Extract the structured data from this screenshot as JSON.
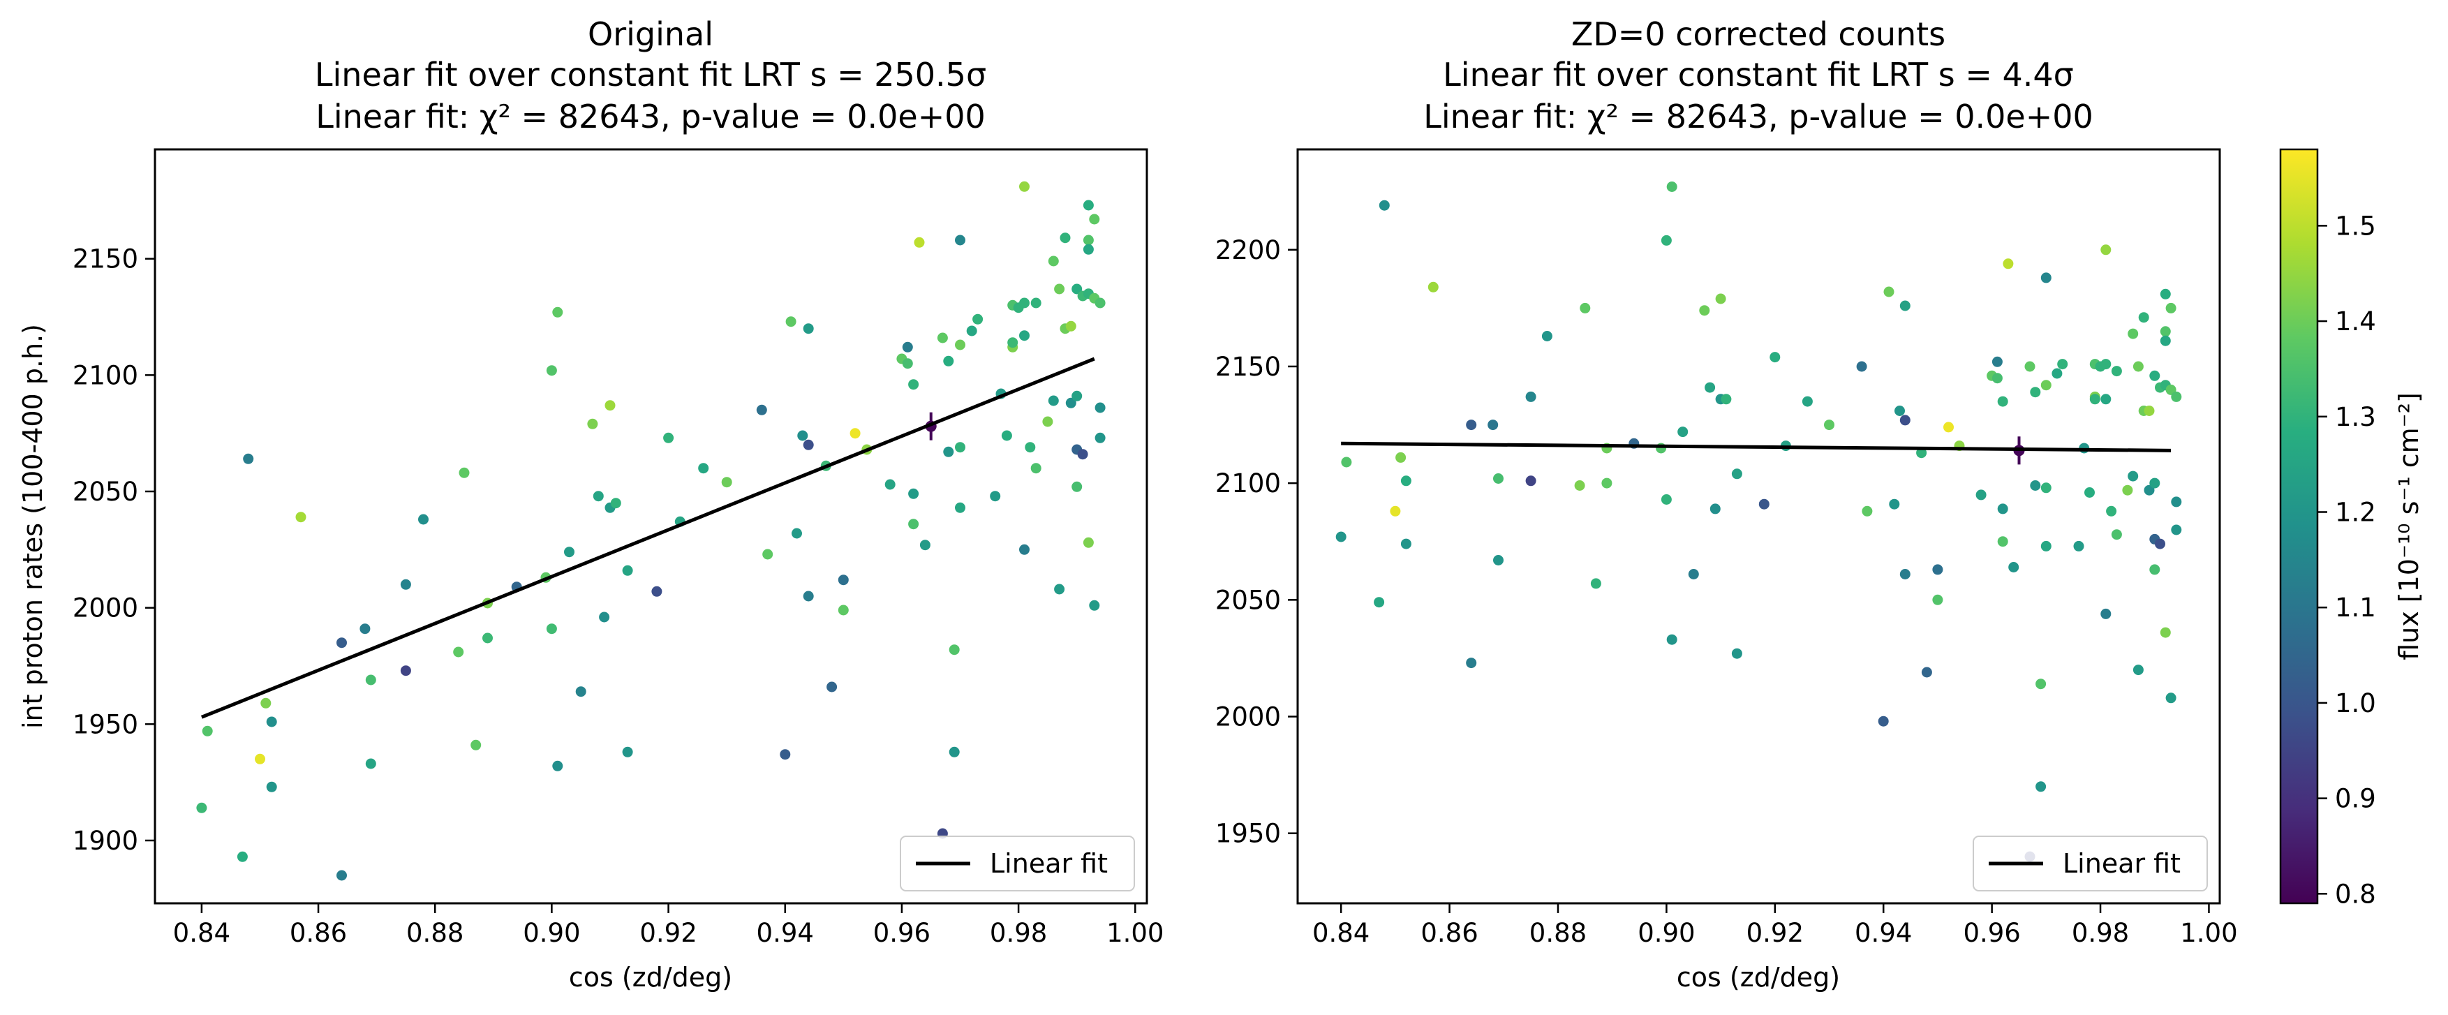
{
  "colormap": {
    "stops": [
      "#440154",
      "#472d7b",
      "#3b528b",
      "#2c728e",
      "#21918c",
      "#28ae80",
      "#5ec962",
      "#addc30",
      "#fde725"
    ],
    "range": [
      0.79,
      1.58
    ]
  },
  "colorbar": {
    "label": "flux [10⁻¹⁰ s⁻¹ cm⁻²]",
    "ticks": [
      0.8,
      0.9,
      1.0,
      1.1,
      1.2,
      1.3,
      1.4,
      1.5
    ],
    "tick_labels": [
      "0.8",
      "0.9",
      "1.0",
      "1.1",
      "1.2",
      "1.3",
      "1.4",
      "1.5"
    ]
  },
  "chart_data": [
    {
      "type": "scatter",
      "title_lines": [
        "Original",
        "Linear fit over constant fit LRT s = 250.5σ",
        "Linear fit: χ² = 82643, p-value = 0.0e+00"
      ],
      "xlabel": "cos (zd/deg)",
      "ylabel": "int proton rates (100-400 p.h.)",
      "xlim": [
        0.832,
        1.002
      ],
      "ylim": [
        1873,
        2197
      ],
      "xticks": [
        0.84,
        0.86,
        0.88,
        0.9,
        0.92,
        0.94,
        0.96,
        0.98,
        1.0
      ],
      "xtick_labels": [
        "0.84",
        "0.86",
        "0.88",
        "0.90",
        "0.92",
        "0.94",
        "0.96",
        "0.98",
        "1.00"
      ],
      "yticks": [
        1900,
        1950,
        2000,
        2050,
        2100,
        2150
      ],
      "ytick_labels": [
        "1900",
        "1950",
        "2000",
        "2050",
        "2100",
        "2150"
      ],
      "fit_line": {
        "x": [
          0.84,
          0.993
        ],
        "y": [
          1953,
          2107
        ]
      },
      "legend": {
        "label": "Linear fit",
        "position": "lower right"
      },
      "errorbar_point": {
        "x": 0.965,
        "y": 2078,
        "yerr": 6,
        "c": 0.8
      },
      "points": [
        [
          0.84,
          1914,
          1.32
        ],
        [
          0.841,
          1947,
          1.36
        ],
        [
          0.847,
          1893,
          1.28
        ],
        [
          0.848,
          2064,
          1.12
        ],
        [
          0.85,
          1935,
          1.55
        ],
        [
          0.851,
          1959,
          1.42
        ],
        [
          0.852,
          1951,
          1.18
        ],
        [
          0.852,
          1923,
          1.2
        ],
        [
          0.857,
          2039,
          1.47
        ],
        [
          0.864,
          1885,
          1.12
        ],
        [
          0.864,
          1985,
          1.02
        ],
        [
          0.868,
          1991,
          1.12
        ],
        [
          0.869,
          1933,
          1.25
        ],
        [
          0.869,
          1969,
          1.34
        ],
        [
          0.875,
          1973,
          0.95
        ],
        [
          0.875,
          2010,
          1.14
        ],
        [
          0.878,
          2038,
          1.18
        ],
        [
          0.884,
          1981,
          1.38
        ],
        [
          0.885,
          2058,
          1.38
        ],
        [
          0.887,
          1941,
          1.38
        ],
        [
          0.889,
          1987,
          1.32
        ],
        [
          0.889,
          2002,
          1.42
        ],
        [
          0.894,
          2009,
          1.05
        ],
        [
          0.899,
          2013,
          1.38
        ],
        [
          0.9,
          1991,
          1.33
        ],
        [
          0.9,
          2102,
          1.36
        ],
        [
          0.901,
          2127,
          1.38
        ],
        [
          0.901,
          1932,
          1.18
        ],
        [
          0.903,
          2024,
          1.22
        ],
        [
          0.905,
          1964,
          1.14
        ],
        [
          0.907,
          2079,
          1.42
        ],
        [
          0.908,
          2048,
          1.25
        ],
        [
          0.909,
          1996,
          1.18
        ],
        [
          0.91,
          2087,
          1.46
        ],
        [
          0.91,
          2043,
          1.22
        ],
        [
          0.911,
          2045,
          1.3
        ],
        [
          0.913,
          1938,
          1.2
        ],
        [
          0.913,
          2016,
          1.25
        ],
        [
          0.918,
          2007,
          0.98
        ],
        [
          0.92,
          2073,
          1.3
        ],
        [
          0.922,
          2037,
          1.25
        ],
        [
          0.926,
          2060,
          1.26
        ],
        [
          0.93,
          2054,
          1.4
        ],
        [
          0.936,
          2085,
          1.08
        ],
        [
          0.937,
          2023,
          1.38
        ],
        [
          0.94,
          1937,
          1.02
        ],
        [
          0.941,
          2123,
          1.38
        ],
        [
          0.942,
          2032,
          1.22
        ],
        [
          0.943,
          2074,
          1.18
        ],
        [
          0.944,
          2070,
          0.98
        ],
        [
          0.944,
          2005,
          1.12
        ],
        [
          0.944,
          2120,
          1.22
        ],
        [
          0.947,
          2061,
          1.32
        ],
        [
          0.948,
          1966,
          1.05
        ],
        [
          0.95,
          2012,
          1.08
        ],
        [
          0.95,
          1999,
          1.38
        ],
        [
          0.952,
          2075,
          1.56
        ],
        [
          0.954,
          2068,
          1.44
        ],
        [
          0.958,
          2053,
          1.25
        ],
        [
          0.96,
          2107,
          1.38
        ],
        [
          0.961,
          2112,
          1.12
        ],
        [
          0.961,
          2105,
          1.34
        ],
        [
          0.962,
          2049,
          1.22
        ],
        [
          0.962,
          2036,
          1.35
        ],
        [
          0.962,
          2096,
          1.3
        ],
        [
          0.963,
          2157,
          1.5
        ],
        [
          0.964,
          2027,
          1.22
        ],
        [
          0.967,
          1903,
          0.96
        ],
        [
          0.967,
          2116,
          1.38
        ],
        [
          0.968,
          2106,
          1.28
        ],
        [
          0.968,
          2067,
          1.2
        ],
        [
          0.969,
          1982,
          1.36
        ],
        [
          0.969,
          1938,
          1.2
        ],
        [
          0.97,
          2113,
          1.4
        ],
        [
          0.97,
          2043,
          1.26
        ],
        [
          0.97,
          2158,
          1.15
        ],
        [
          0.97,
          2069,
          1.3
        ],
        [
          0.972,
          2119,
          1.26
        ],
        [
          0.973,
          2124,
          1.3
        ],
        [
          0.976,
          2048,
          1.22
        ],
        [
          0.977,
          2092,
          1.22
        ],
        [
          0.978,
          2074,
          1.28
        ],
        [
          0.979,
          2112,
          1.42
        ],
        [
          0.979,
          2114,
          1.32
        ],
        [
          0.979,
          2130,
          1.35
        ],
        [
          0.98,
          2129,
          1.3
        ],
        [
          0.981,
          2131,
          1.3
        ],
        [
          0.981,
          2181,
          1.45
        ],
        [
          0.981,
          2117,
          1.26
        ],
        [
          0.981,
          2025,
          1.12
        ],
        [
          0.982,
          2069,
          1.3
        ],
        [
          0.983,
          2060,
          1.35
        ],
        [
          0.983,
          2131,
          1.3
        ],
        [
          0.985,
          2080,
          1.42
        ],
        [
          0.986,
          2149,
          1.38
        ],
        [
          0.986,
          2089,
          1.22
        ],
        [
          0.987,
          2137,
          1.4
        ],
        [
          0.987,
          2008,
          1.22
        ],
        [
          0.988,
          2159,
          1.3
        ],
        [
          0.988,
          2120,
          1.4
        ],
        [
          0.989,
          2121,
          1.45
        ],
        [
          0.989,
          2088,
          1.18
        ],
        [
          0.99,
          2137,
          1.28
        ],
        [
          0.99,
          2068,
          1.04
        ],
        [
          0.99,
          2091,
          1.24
        ],
        [
          0.99,
          2052,
          1.34
        ],
        [
          0.991,
          2066,
          0.98
        ],
        [
          0.991,
          2134,
          1.32
        ],
        [
          0.992,
          2158,
          1.36
        ],
        [
          0.992,
          2173,
          1.28
        ],
        [
          0.992,
          2154,
          1.26
        ],
        [
          0.992,
          2028,
          1.42
        ],
        [
          0.992,
          2135,
          1.3
        ],
        [
          0.993,
          2167,
          1.38
        ],
        [
          0.993,
          2001,
          1.22
        ],
        [
          0.993,
          2133,
          1.38
        ],
        [
          0.994,
          2086,
          1.18
        ],
        [
          0.994,
          2131,
          1.35
        ],
        [
          0.994,
          2073,
          1.2
        ]
      ]
    },
    {
      "type": "scatter",
      "title_lines": [
        "ZD=0 corrected counts",
        "Linear fit over constant fit LRT s = 4.4σ",
        "Linear fit: χ² = 82643, p-value = 0.0e+00"
      ],
      "xlabel": "cos (zd/deg)",
      "ylabel": "",
      "xlim": [
        0.832,
        1.002
      ],
      "ylim": [
        1920,
        2243
      ],
      "xticks": [
        0.84,
        0.86,
        0.88,
        0.9,
        0.92,
        0.94,
        0.96,
        0.98,
        1.0
      ],
      "xtick_labels": [
        "0.84",
        "0.86",
        "0.88",
        "0.90",
        "0.92",
        "0.94",
        "0.96",
        "0.98",
        "1.00"
      ],
      "yticks": [
        1950,
        2000,
        2050,
        2100,
        2150,
        2200
      ],
      "ytick_labels": [
        "1950",
        "2000",
        "2050",
        "2100",
        "2150",
        "2200"
      ],
      "fit_line": {
        "x": [
          0.84,
          0.993
        ],
        "y": [
          2117,
          2114
        ]
      },
      "legend": {
        "label": "Linear fit",
        "position": "lower right"
      },
      "errorbar_point": {
        "x": 0.965,
        "y": 2114,
        "yerr": 6,
        "c": 0.8
      },
      "points": [
        [
          0.84,
          2077,
          1.2
        ],
        [
          0.841,
          2109,
          1.36
        ],
        [
          0.847,
          2049,
          1.26
        ],
        [
          0.848,
          2219,
          1.18
        ],
        [
          0.85,
          2088,
          1.55
        ],
        [
          0.851,
          2111,
          1.42
        ],
        [
          0.852,
          2074,
          1.2
        ],
        [
          0.852,
          2101,
          1.28
        ],
        [
          0.857,
          2184,
          1.46
        ],
        [
          0.864,
          2023,
          1.12
        ],
        [
          0.864,
          2125,
          1.02
        ],
        [
          0.868,
          2125,
          1.1
        ],
        [
          0.869,
          2067,
          1.2
        ],
        [
          0.869,
          2102,
          1.34
        ],
        [
          0.875,
          2101,
          0.95
        ],
        [
          0.875,
          2137,
          1.15
        ],
        [
          0.878,
          2163,
          1.2
        ],
        [
          0.884,
          2099,
          1.42
        ],
        [
          0.885,
          2175,
          1.38
        ],
        [
          0.887,
          2057,
          1.3
        ],
        [
          0.889,
          2100,
          1.38
        ],
        [
          0.889,
          2115,
          1.4
        ],
        [
          0.894,
          2117,
          1.05
        ],
        [
          0.899,
          2115,
          1.36
        ],
        [
          0.9,
          2093,
          1.3
        ],
        [
          0.9,
          2204,
          1.3
        ],
        [
          0.901,
          2227,
          1.35
        ],
        [
          0.901,
          2033,
          1.2
        ],
        [
          0.903,
          2122,
          1.24
        ],
        [
          0.905,
          2061,
          1.12
        ],
        [
          0.907,
          2174,
          1.4
        ],
        [
          0.908,
          2141,
          1.25
        ],
        [
          0.909,
          2089,
          1.18
        ],
        [
          0.91,
          2179,
          1.42
        ],
        [
          0.91,
          2136,
          1.2
        ],
        [
          0.911,
          2136,
          1.3
        ],
        [
          0.913,
          2027,
          1.2
        ],
        [
          0.913,
          2104,
          1.24
        ],
        [
          0.918,
          2091,
          1.0
        ],
        [
          0.92,
          2154,
          1.28
        ],
        [
          0.922,
          2116,
          1.24
        ],
        [
          0.926,
          2135,
          1.25
        ],
        [
          0.93,
          2125,
          1.38
        ],
        [
          0.936,
          2150,
          1.08
        ],
        [
          0.937,
          2088,
          1.38
        ],
        [
          0.94,
          1998,
          1.02
        ],
        [
          0.941,
          2182,
          1.4
        ],
        [
          0.942,
          2091,
          1.2
        ],
        [
          0.943,
          2131,
          1.2
        ],
        [
          0.944,
          2127,
          0.98
        ],
        [
          0.944,
          2061,
          1.12
        ],
        [
          0.944,
          2176,
          1.24
        ],
        [
          0.947,
          2113,
          1.3
        ],
        [
          0.948,
          2019,
          1.05
        ],
        [
          0.95,
          2063,
          1.08
        ],
        [
          0.95,
          2050,
          1.36
        ],
        [
          0.952,
          2124,
          1.56
        ],
        [
          0.954,
          2116,
          1.44
        ],
        [
          0.958,
          2095,
          1.24
        ],
        [
          0.96,
          2146,
          1.38
        ],
        [
          0.961,
          2152,
          1.12
        ],
        [
          0.961,
          2145,
          1.34
        ],
        [
          0.962,
          2089,
          1.2
        ],
        [
          0.962,
          2075,
          1.36
        ],
        [
          0.962,
          2135,
          1.3
        ],
        [
          0.963,
          2194,
          1.5
        ],
        [
          0.964,
          2064,
          1.2
        ],
        [
          0.967,
          1940,
          0.96
        ],
        [
          0.967,
          2150,
          1.38
        ],
        [
          0.968,
          2139,
          1.3
        ],
        [
          0.968,
          2099,
          1.2
        ],
        [
          0.969,
          2014,
          1.36
        ],
        [
          0.969,
          1970,
          1.2
        ],
        [
          0.97,
          2142,
          1.4
        ],
        [
          0.97,
          2073,
          1.26
        ],
        [
          0.97,
          2188,
          1.15
        ],
        [
          0.97,
          2098,
          1.3
        ],
        [
          0.972,
          2147,
          1.26
        ],
        [
          0.973,
          2151,
          1.3
        ],
        [
          0.976,
          2073,
          1.22
        ],
        [
          0.977,
          2115,
          1.2
        ],
        [
          0.978,
          2096,
          1.28
        ],
        [
          0.979,
          2137,
          1.42
        ],
        [
          0.979,
          2136,
          1.3
        ],
        [
          0.979,
          2151,
          1.35
        ],
        [
          0.98,
          2150,
          1.3
        ],
        [
          0.981,
          2151,
          1.3
        ],
        [
          0.981,
          2200,
          1.45
        ],
        [
          0.981,
          2136,
          1.26
        ],
        [
          0.981,
          2044,
          1.12
        ],
        [
          0.982,
          2088,
          1.3
        ],
        [
          0.983,
          2078,
          1.35
        ],
        [
          0.983,
          2148,
          1.3
        ],
        [
          0.985,
          2097,
          1.42
        ],
        [
          0.986,
          2164,
          1.38
        ],
        [
          0.986,
          2103,
          1.22
        ],
        [
          0.987,
          2150,
          1.4
        ],
        [
          0.987,
          2020,
          1.22
        ],
        [
          0.988,
          2171,
          1.3
        ],
        [
          0.988,
          2131,
          1.4
        ],
        [
          0.989,
          2131,
          1.45
        ],
        [
          0.989,
          2097,
          1.18
        ],
        [
          0.99,
          2146,
          1.28
        ],
        [
          0.99,
          2076,
          1.04
        ],
        [
          0.99,
          2100,
          1.24
        ],
        [
          0.99,
          2063,
          1.34
        ],
        [
          0.991,
          2074,
          0.98
        ],
        [
          0.991,
          2141,
          1.32
        ],
        [
          0.992,
          2165,
          1.36
        ],
        [
          0.992,
          2181,
          1.28
        ],
        [
          0.992,
          2161,
          1.26
        ],
        [
          0.992,
          2036,
          1.42
        ],
        [
          0.992,
          2142,
          1.3
        ],
        [
          0.993,
          2175,
          1.38
        ],
        [
          0.993,
          2008,
          1.22
        ],
        [
          0.993,
          2140,
          1.38
        ],
        [
          0.994,
          2092,
          1.18
        ],
        [
          0.994,
          2137,
          1.35
        ],
        [
          0.994,
          2080,
          1.2
        ]
      ]
    }
  ]
}
